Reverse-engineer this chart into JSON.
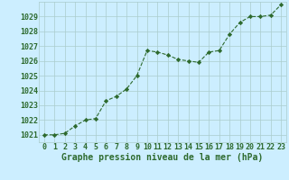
{
  "x": [
    0,
    1,
    2,
    3,
    4,
    5,
    6,
    7,
    8,
    9,
    10,
    11,
    12,
    13,
    14,
    15,
    16,
    17,
    18,
    19,
    20,
    21,
    22,
    23
  ],
  "y": [
    1021.0,
    1021.0,
    1021.1,
    1021.6,
    1022.0,
    1022.1,
    1023.3,
    1023.6,
    1024.1,
    1025.0,
    1026.7,
    1026.6,
    1026.4,
    1026.1,
    1026.0,
    1025.9,
    1026.6,
    1026.7,
    1027.8,
    1028.6,
    1029.0,
    1029.0,
    1029.1,
    1029.8
  ],
  "line_color": "#2d6a2d",
  "marker": "D",
  "marker_size": 2.2,
  "line_width": 0.8,
  "background_color": "#cceeff",
  "grid_color": "#aacccc",
  "ylabel_ticks": [
    1021,
    1022,
    1023,
    1024,
    1025,
    1026,
    1027,
    1028,
    1029
  ],
  "xlabel": "Graphe pression niveau de la mer (hPa)",
  "xlabel_fontsize": 7,
  "xlabel_color": "#2d6a2d",
  "ylim": [
    1020.5,
    1030.0
  ],
  "xlim": [
    -0.5,
    23.5
  ],
  "tick_fontsize": 6,
  "tick_color": "#2d6a2d"
}
